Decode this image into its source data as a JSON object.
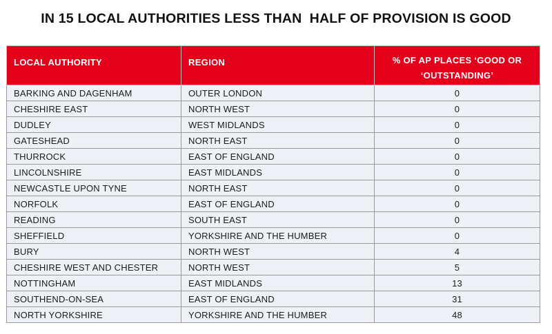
{
  "title": "IN 15 LOCAL AUTHORITIES LESS THAN  HALF OF PROVISION IS GOOD",
  "table": {
    "headers": {
      "authority": "LOCAL AUTHORITY",
      "region": "REGION",
      "percentage": "% OF AP PLACES ‘GOOD OR ‘OUTSTANDING’"
    },
    "rows": [
      {
        "authority": "BARKING AND DAGENHAM",
        "region": "OUTER LONDON",
        "percentage": "0"
      },
      {
        "authority": "CHESHIRE EAST",
        "region": "NORTH WEST",
        "percentage": "0"
      },
      {
        "authority": "DUDLEY",
        "region": "WEST MIDLANDS",
        "percentage": "0"
      },
      {
        "authority": "GATESHEAD",
        "region": "NORTH EAST",
        "percentage": "0"
      },
      {
        "authority": "THURROCK",
        "region": "EAST OF ENGLAND",
        "percentage": "0"
      },
      {
        "authority": "LINCOLNSHIRE",
        "region": "EAST MIDLANDS",
        "percentage": "0"
      },
      {
        "authority": "NEWCASTLE UPON TYNE",
        "region": "NORTH EAST",
        "percentage": "0"
      },
      {
        "authority": "NORFOLK",
        "region": "EAST OF ENGLAND",
        "percentage": "0"
      },
      {
        "authority": "READING",
        "region": "SOUTH EAST",
        "percentage": "0"
      },
      {
        "authority": "SHEFFIELD",
        "region": "YORKSHIRE AND THE HUMBER",
        "percentage": "0"
      },
      {
        "authority": "BURY",
        "region": "NORTH WEST",
        "percentage": "4"
      },
      {
        "authority": "CHESHIRE WEST AND CHESTER",
        "region": "NORTH WEST",
        "percentage": "5"
      },
      {
        "authority": "NOTTINGHAM",
        "region": "EAST MIDLANDS",
        "percentage": "13"
      },
      {
        "authority": "SOUTHEND-ON-SEA",
        "region": "EAST OF ENGLAND",
        "percentage": "31"
      },
      {
        "authority": "NORTH YORKSHIRE",
        "region": "YORKSHIRE AND THE HUMBER",
        "percentage": "48"
      }
    ]
  },
  "colors": {
    "header_background": "#e3001b",
    "header_text": "#ffffff",
    "row_background": "#eef2f7"
  }
}
